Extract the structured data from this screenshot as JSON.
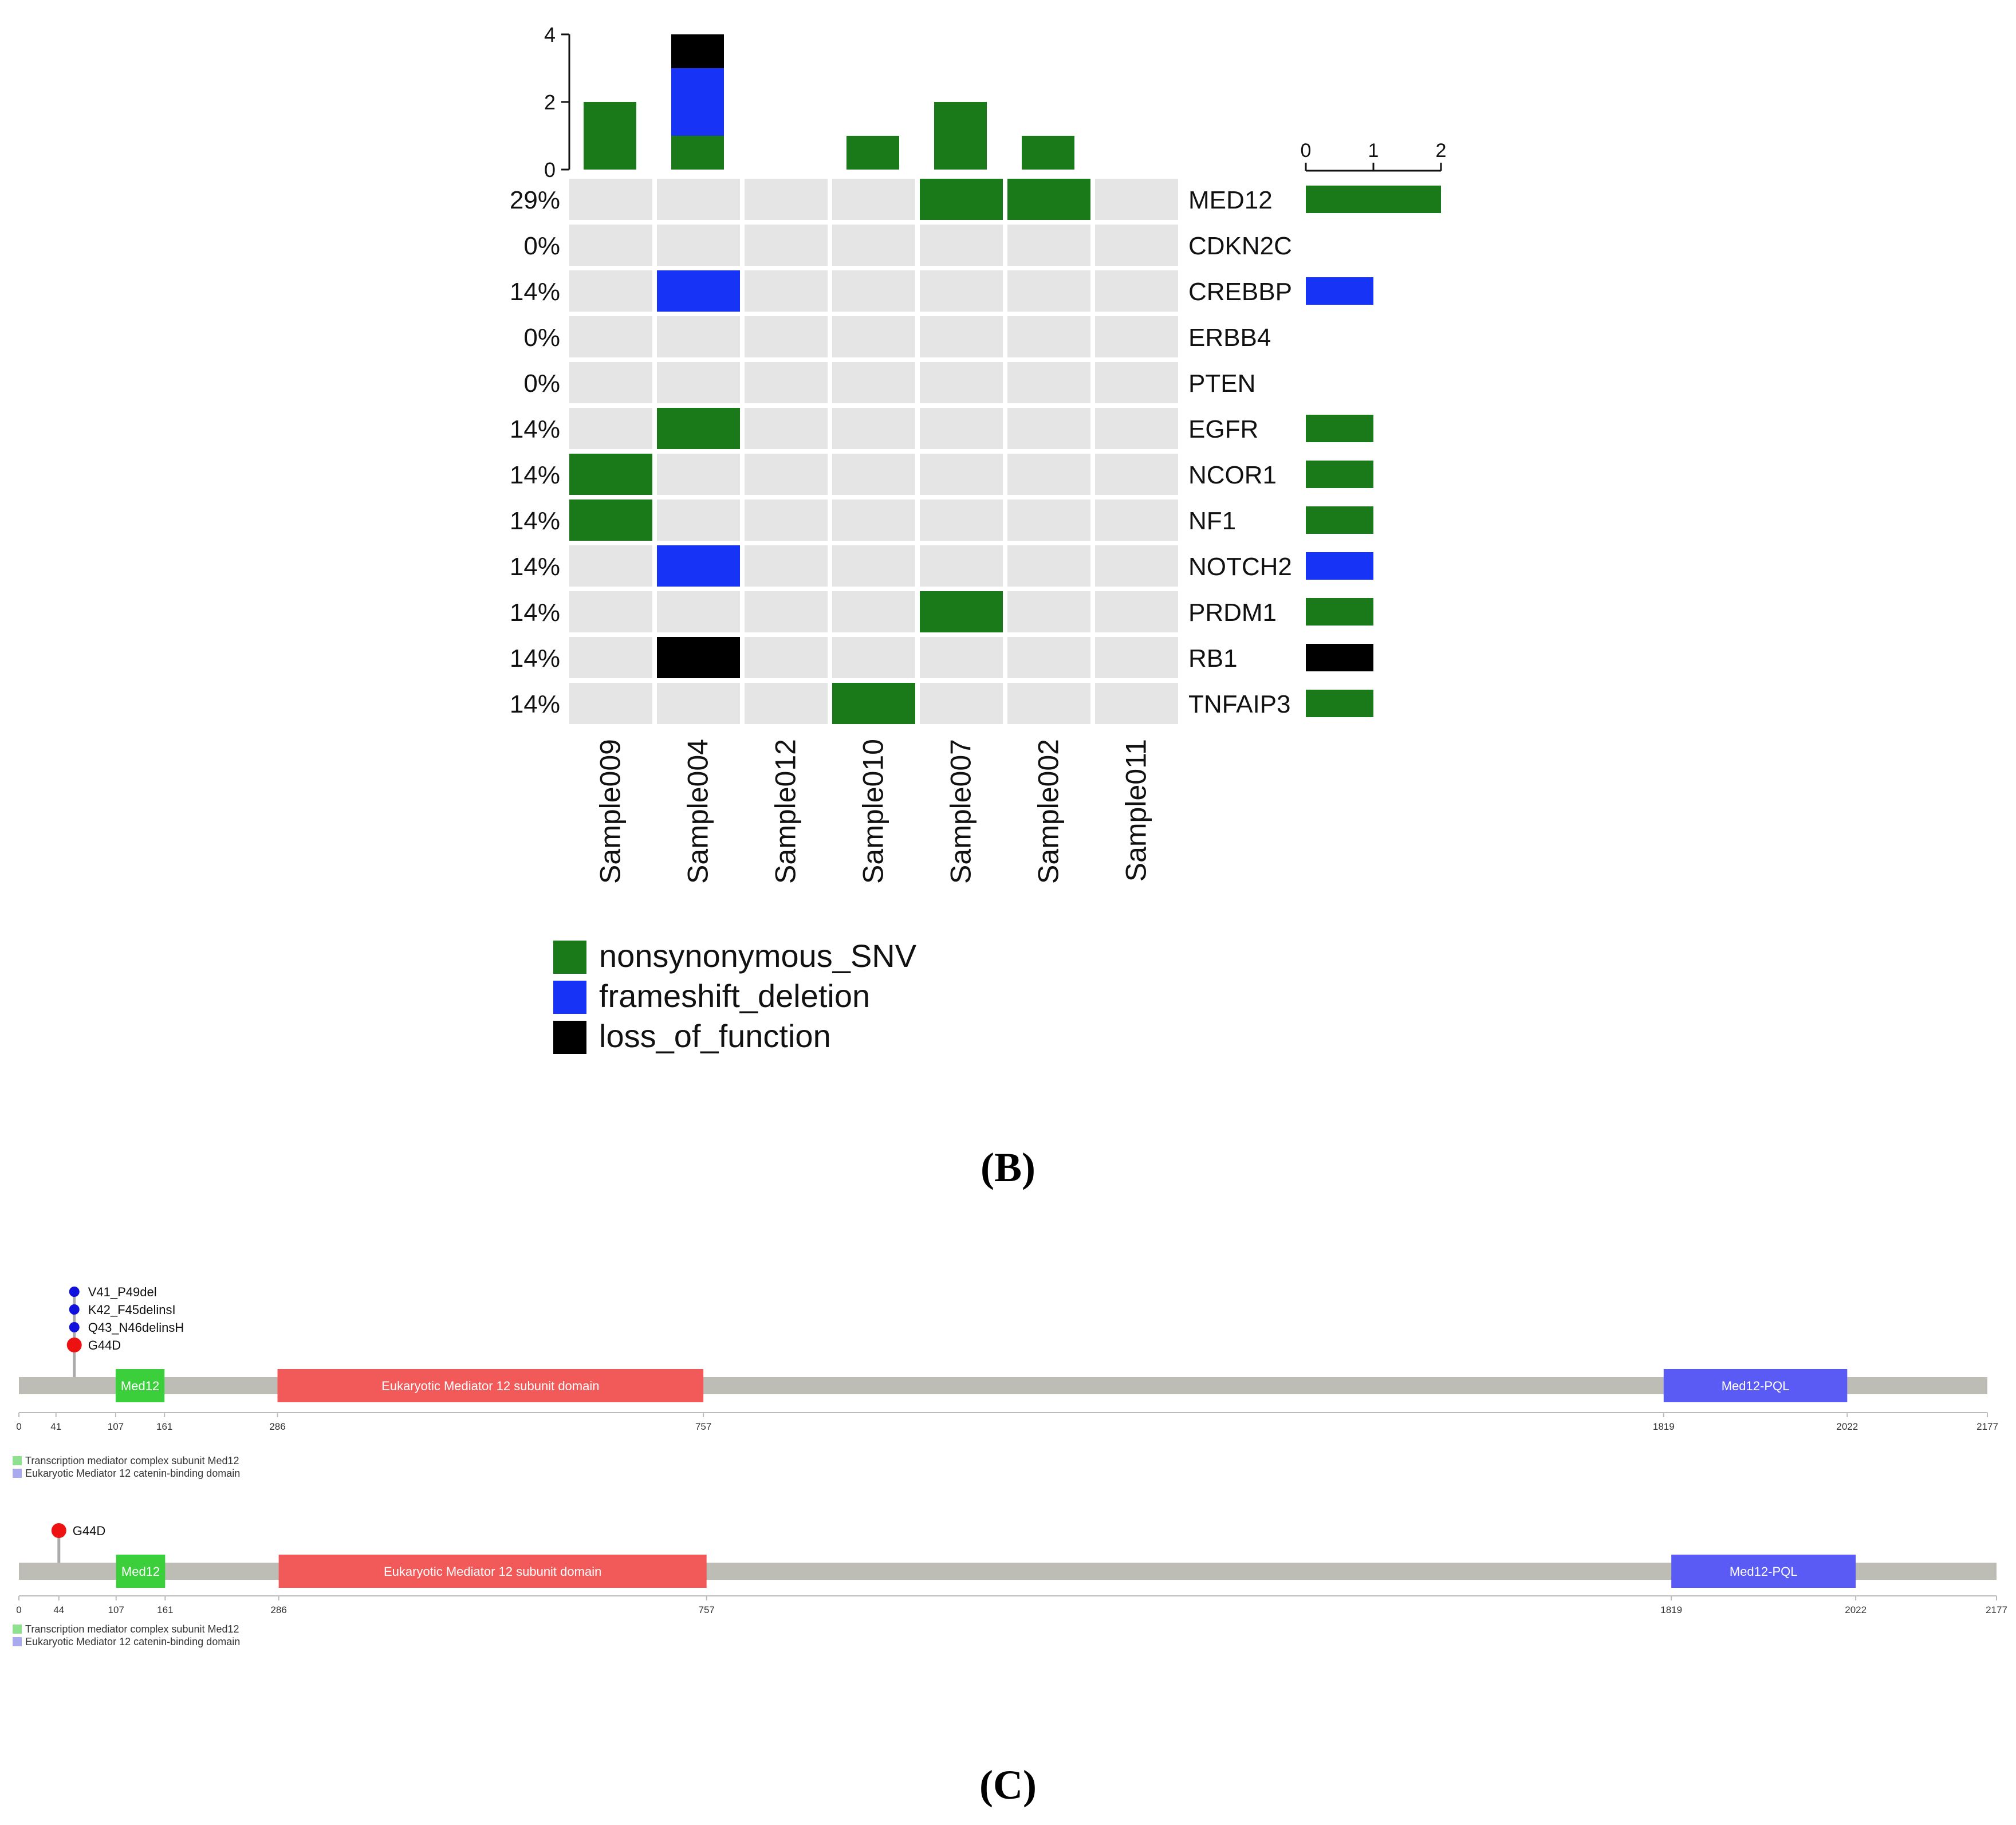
{
  "colors": {
    "nonsynonymous_SNV": "#1a7a1a",
    "frameshift_deletion": "#1733f5",
    "loss_of_function": "#000000",
    "empty_cell": "#e5e5e5",
    "backbone": "#bdbdb5",
    "med12_domain": "#3ccf3c",
    "subunit_domain": "#f25959",
    "pql_domain": "#5a5af5",
    "lollipop_red": "#ee1111",
    "lollipop_blue": "#1111dd",
    "stick": "#aaaaaa"
  },
  "panel_labels": {
    "b": "(B)",
    "c": "(C)"
  },
  "chart_data": [
    {
      "type": "heatmap",
      "name": "oncoprint",
      "samples": [
        "Sample009",
        "Sample004",
        "Sample012",
        "Sample010",
        "Sample007",
        "Sample002",
        "Sample011"
      ],
      "genes": [
        "MED12",
        "CDKN2C",
        "CREBBP",
        "ERBB4",
        "PTEN",
        "EGFR",
        "NCOR1",
        "NF1",
        "NOTCH2",
        "PRDM1",
        "RB1",
        "TNFAIP3"
      ],
      "percentages": [
        "29%",
        "0%",
        "14%",
        "0%",
        "0%",
        "14%",
        "14%",
        "14%",
        "14%",
        "14%",
        "14%",
        "14%"
      ],
      "mutations": [
        {
          "gene": "MED12",
          "sample": "Sample007",
          "type": "nonsynonymous_SNV"
        },
        {
          "gene": "MED12",
          "sample": "Sample002",
          "type": "nonsynonymous_SNV"
        },
        {
          "gene": "CREBBP",
          "sample": "Sample004",
          "type": "frameshift_deletion"
        },
        {
          "gene": "EGFR",
          "sample": "Sample004",
          "type": "nonsynonymous_SNV"
        },
        {
          "gene": "NCOR1",
          "sample": "Sample009",
          "type": "nonsynonymous_SNV"
        },
        {
          "gene": "NF1",
          "sample": "Sample009",
          "type": "nonsynonymous_SNV"
        },
        {
          "gene": "NOTCH2",
          "sample": "Sample004",
          "type": "frameshift_deletion"
        },
        {
          "gene": "PRDM1",
          "sample": "Sample007",
          "type": "nonsynonymous_SNV"
        },
        {
          "gene": "RB1",
          "sample": "Sample004",
          "type": "loss_of_function"
        },
        {
          "gene": "TNFAIP3",
          "sample": "Sample010",
          "type": "nonsynonymous_SNV"
        }
      ],
      "top_bar": {
        "ylim": [
          0,
          4
        ],
        "ticks": [
          "0",
          "2",
          "4"
        ],
        "series": [
          {
            "name": "nonsynonymous_SNV",
            "values": [
              2,
              1,
              0,
              1,
              2,
              1,
              0
            ]
          },
          {
            "name": "frameshift_deletion",
            "values": [
              0,
              2,
              0,
              0,
              0,
              0,
              0
            ]
          },
          {
            "name": "loss_of_function",
            "values": [
              0,
              1,
              0,
              0,
              0,
              0,
              0
            ]
          }
        ]
      },
      "right_bar": {
        "xlim": [
          0,
          2
        ],
        "ticks": [
          "0",
          "1",
          "2"
        ],
        "values": [
          {
            "gene": "MED12",
            "value": 2,
            "type": "nonsynonymous_SNV"
          },
          {
            "gene": "CREBBP",
            "value": 1,
            "type": "frameshift_deletion"
          },
          {
            "gene": "EGFR",
            "value": 1,
            "type": "nonsynonymous_SNV"
          },
          {
            "gene": "NCOR1",
            "value": 1,
            "type": "nonsynonymous_SNV"
          },
          {
            "gene": "NF1",
            "value": 1,
            "type": "nonsynonymous_SNV"
          },
          {
            "gene": "NOTCH2",
            "value": 1,
            "type": "frameshift_deletion"
          },
          {
            "gene": "PRDM1",
            "value": 1,
            "type": "nonsynonymous_SNV"
          },
          {
            "gene": "RB1",
            "value": 1,
            "type": "loss_of_function"
          },
          {
            "gene": "TNFAIP3",
            "value": 1,
            "type": "nonsynonymous_SNV"
          }
        ]
      },
      "legend": [
        "nonsynonymous_SNV",
        "frameshift_deletion",
        "loss_of_function"
      ],
      "legend_position": "bottom-left"
    },
    {
      "type": "lollipop",
      "name": "med12-track-1",
      "protein_length": 2177,
      "ticks": [
        0,
        41,
        107,
        161,
        286,
        757,
        1819,
        2022,
        2177
      ],
      "domains": [
        {
          "label": "Med12",
          "start": 107,
          "end": 161,
          "color_key": "med12_domain"
        },
        {
          "label": "Eukaryotic Mediator 12 subunit domain",
          "start": 286,
          "end": 757,
          "color_key": "subunit_domain"
        },
        {
          "label": "Med12-PQL",
          "start": 1819,
          "end": 2022,
          "color_key": "pql_domain"
        }
      ],
      "mutations": [
        {
          "label": "V41_P49del",
          "position": 41,
          "color_key": "lollipop_blue"
        },
        {
          "label": "K42_F45delinsI",
          "position": 41,
          "color_key": "lollipop_blue"
        },
        {
          "label": "Q43_N46delinsH",
          "position": 41,
          "color_key": "lollipop_blue"
        },
        {
          "label": "G44D",
          "position": 41,
          "color_key": "lollipop_red"
        }
      ],
      "legend": [
        {
          "label": "Transcription mediator complex subunit Med12",
          "color": "#8fe08f"
        },
        {
          "label": "Eukaryotic Mediator 12 catenin-binding domain",
          "color": "#a9a9ee"
        }
      ]
    },
    {
      "type": "lollipop",
      "name": "med12-track-2",
      "protein_length": 2177,
      "ticks": [
        0,
        44,
        107,
        161,
        286,
        757,
        1819,
        2022,
        2177
      ],
      "domains": [
        {
          "label": "Med12",
          "start": 107,
          "end": 161,
          "color_key": "med12_domain"
        },
        {
          "label": "Eukaryotic Mediator 12 subunit domain",
          "start": 286,
          "end": 757,
          "color_key": "subunit_domain"
        },
        {
          "label": "Med12-PQL",
          "start": 1819,
          "end": 2022,
          "color_key": "pql_domain"
        }
      ],
      "mutations": [
        {
          "label": "G44D",
          "position": 44,
          "color_key": "lollipop_red"
        }
      ],
      "legend": [
        {
          "label": "Transcription mediator complex subunit Med12",
          "color": "#8fe08f"
        },
        {
          "label": "Eukaryotic Mediator 12 catenin-binding domain",
          "color": "#a9a9ee"
        }
      ]
    }
  ]
}
